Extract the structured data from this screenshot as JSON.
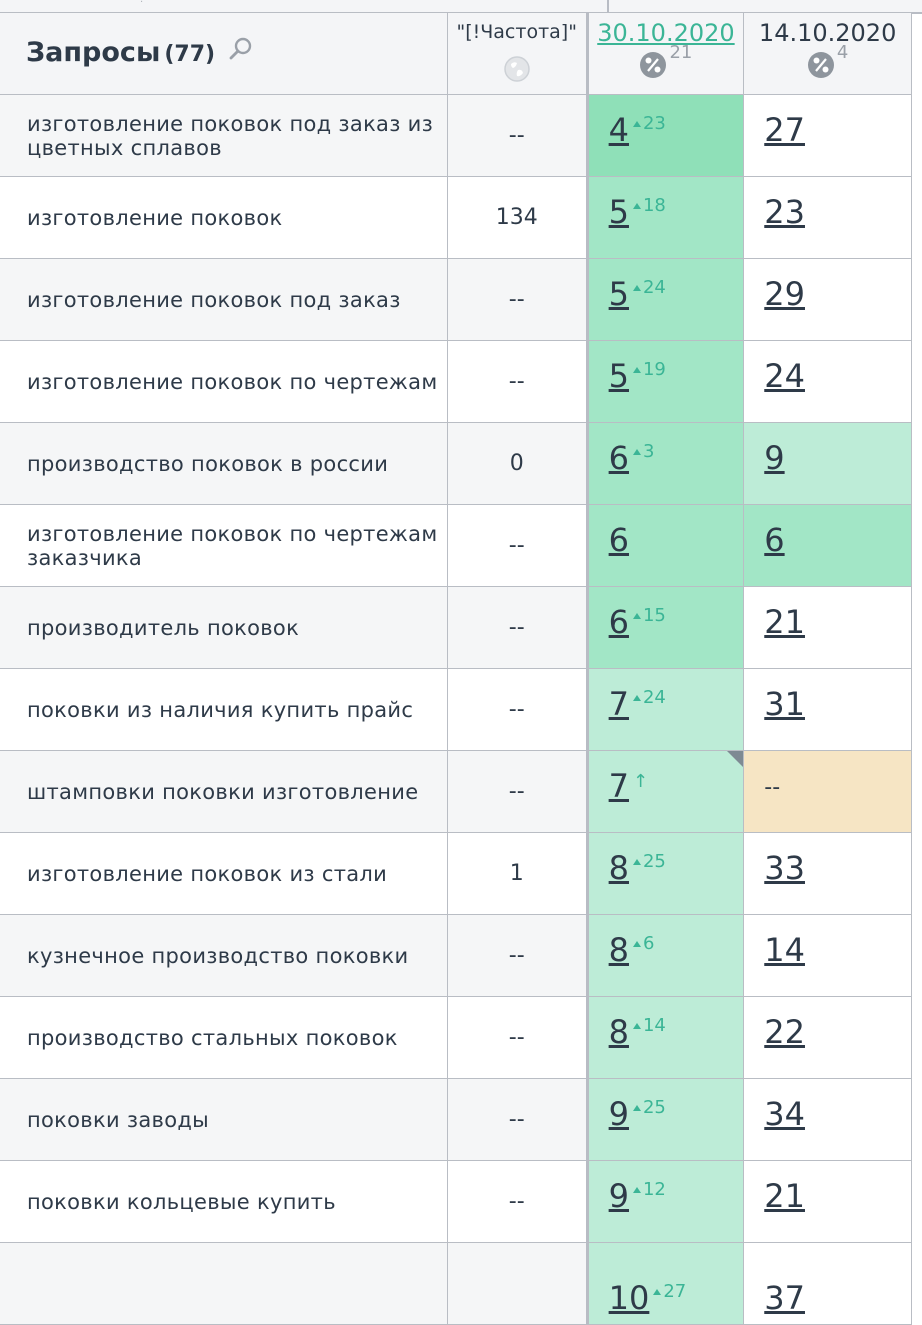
{
  "header": {
    "query_title": "Запросы",
    "query_count": "(77)",
    "freq_label": "\"[!Частота]\"",
    "col1_date": "30.10.2020",
    "col1_pct": "21",
    "col2_date": "14.10.2020",
    "col2_pct": "4"
  },
  "colors": {
    "accent": "#3bb596",
    "top1": "#8fe0b8",
    "top3": "#a2e6c6",
    "top10": "#bdecd7",
    "noRank": "#f6e5c4"
  },
  "rows": [
    {
      "query": "изготовление поковок под заказ из цветных сплавов",
      "freq": "--",
      "pos1": "4",
      "delta1": "23",
      "pos2": "27"
    },
    {
      "query": "изготовление поковок",
      "freq": "134",
      "pos1": "5",
      "delta1": "18",
      "pos2": "23"
    },
    {
      "query": "изготовление поковок под заказ",
      "freq": "--",
      "pos1": "5",
      "delta1": "24",
      "pos2": "29"
    },
    {
      "query": "изготовление поковок по чертежам",
      "freq": "--",
      "pos1": "5",
      "delta1": "19",
      "pos2": "24"
    },
    {
      "query": "производство поковок в россии",
      "freq": "0",
      "pos1": "6",
      "delta1": "3",
      "pos2": "9"
    },
    {
      "query": "изготовление поковок по чертежам заказчика",
      "freq": "--",
      "pos1": "6",
      "delta1": "",
      "pos2": "6"
    },
    {
      "query": "производитель поковок",
      "freq": "--",
      "pos1": "6",
      "delta1": "15",
      "pos2": "21"
    },
    {
      "query": "поковки из наличия купить прайс",
      "freq": "--",
      "pos1": "7",
      "delta1": "24",
      "pos2": "31"
    },
    {
      "query": "штамповки поковки изготовление",
      "freq": "--",
      "pos1": "7",
      "delta1": "↑",
      "pos2": "--"
    },
    {
      "query": "изготовление поковок из стали",
      "freq": "1",
      "pos1": "8",
      "delta1": "25",
      "pos2": "33"
    },
    {
      "query": "кузнечное производство поковки",
      "freq": "--",
      "pos1": "8",
      "delta1": "6",
      "pos2": "14"
    },
    {
      "query": "производство стальных поковок",
      "freq": "--",
      "pos1": "8",
      "delta1": "14",
      "pos2": "22"
    },
    {
      "query": "поковки заводы",
      "freq": "--",
      "pos1": "9",
      "delta1": "25",
      "pos2": "34"
    },
    {
      "query": "поковки кольцевые купить",
      "freq": "--",
      "pos1": "9",
      "delta1": "12",
      "pos2": "21"
    },
    {
      "query": "",
      "freq": "",
      "pos1": "10",
      "delta1": "27",
      "pos2": "37"
    }
  ]
}
